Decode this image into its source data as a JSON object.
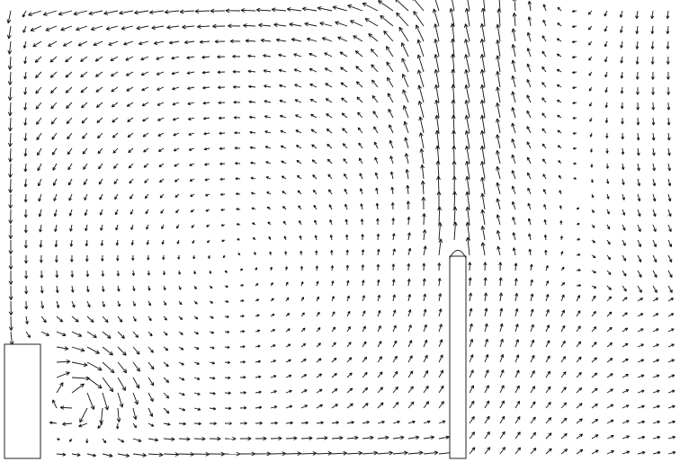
{
  "figure": {
    "kind": "vector-field",
    "description_visible_text": "",
    "colors": {
      "background": "#ffffff",
      "arrows": "#111111",
      "obstacles": "#222222"
    },
    "features": {
      "left_block": "inlet-block-left",
      "center_post": "vertical-post-center",
      "plume_above_post": true,
      "right_downflow": true,
      "left_boundary_downflow": true,
      "bottom_corner_vortex": true
    }
  }
}
